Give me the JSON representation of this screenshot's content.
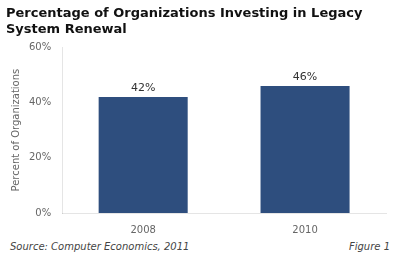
{
  "chart_data": {
    "type": "bar",
    "title": "Percentage of Organizations Investing in Legacy\nSystem Renewal",
    "categories": [
      "2008",
      "2010"
    ],
    "values": [
      42,
      46
    ],
    "value_labels": [
      "42%",
      "46%"
    ],
    "data_labels": true,
    "color": "#2E4E7E",
    "ylabel": "Percent of Organizations",
    "ylim": [
      0,
      60
    ],
    "yticks": [
      {
        "value": 0,
        "label": "0%"
      },
      {
        "value": 20,
        "label": "20%"
      },
      {
        "value": 40,
        "label": "40%"
      },
      {
        "value": 60,
        "label": "60%"
      }
    ],
    "grid": false,
    "legend": false,
    "annotations": [
      "Source: Computer Economics, 2011",
      "Figure 1"
    ]
  }
}
